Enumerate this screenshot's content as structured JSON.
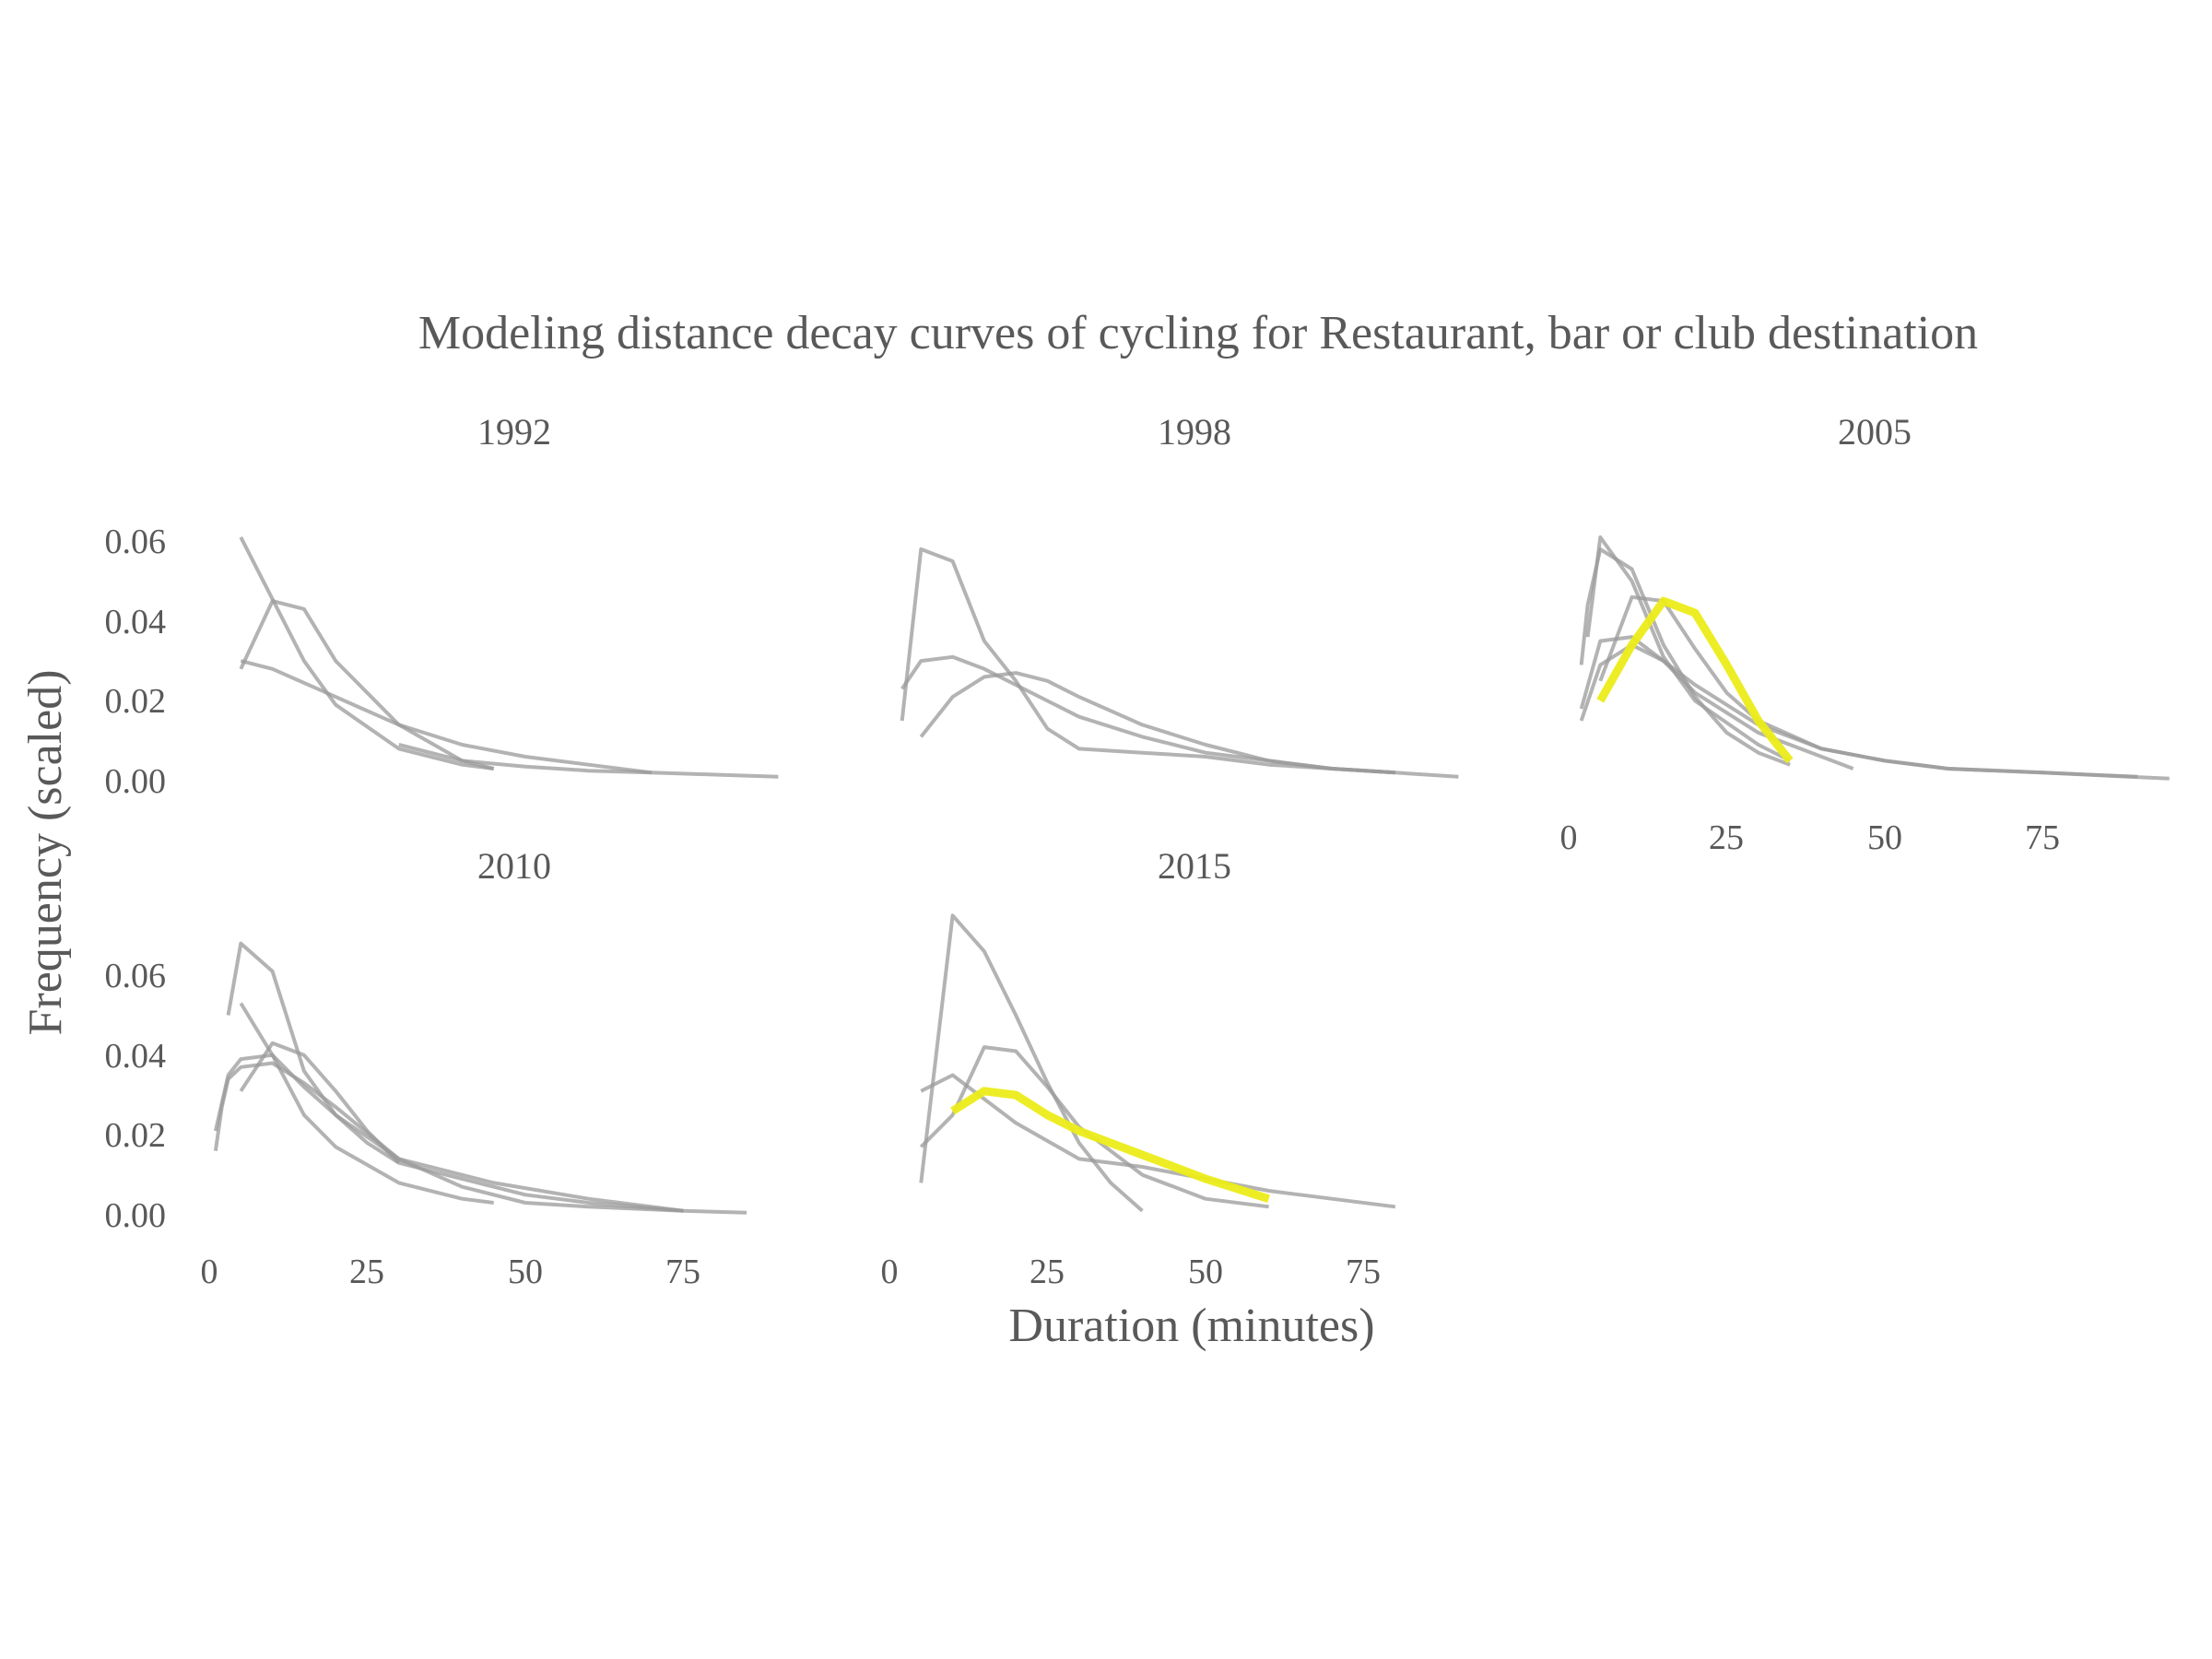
{
  "chart_data": {
    "type": "line",
    "title": "Modeling distance decay curves of cycling for Restaurant, bar or club destination",
    "xlabel": "Duration (minutes)",
    "ylabel": "Frequency (scaled)",
    "xlim": [
      0,
      95
    ],
    "ylim": [
      0,
      0.065
    ],
    "x_ticks": [
      "0",
      "25",
      "50",
      "75"
    ],
    "y_ticks": [
      "0.00",
      "0.02",
      "0.04",
      "0.06"
    ],
    "grid": false,
    "colors": {
      "background_series": "#999999",
      "highlight": "#ecec1a",
      "text": "#595959"
    },
    "panels": [
      {
        "label": "1992",
        "series": [
          {
            "highlight": false,
            "x": [
              5,
              10,
              15,
              20,
              30,
              40,
              45
            ],
            "y": [
              0.028,
              0.045,
              0.043,
              0.03,
              0.014,
              0.005,
              0.003
            ]
          },
          {
            "highlight": false,
            "x": [
              5,
              15,
              20,
              30,
              40,
              45
            ],
            "y": [
              0.061,
              0.03,
              0.019,
              0.008,
              0.004,
              0.003
            ]
          },
          {
            "highlight": false,
            "x": [
              5,
              10,
              20,
              30,
              40,
              50,
              60,
              70
            ],
            "y": [
              0.03,
              0.028,
              0.021,
              0.014,
              0.009,
              0.006,
              0.004,
              0.002
            ]
          },
          {
            "highlight": false,
            "x": [
              30,
              40,
              50,
              60,
              70,
              80,
              90
            ],
            "y": [
              0.009,
              0.005,
              0.0035,
              0.0025,
              0.002,
              0.0015,
              0.001
            ]
          }
        ]
      },
      {
        "label": "1998",
        "series": [
          {
            "highlight": false,
            "x": [
              2,
              5,
              10,
              15,
              20,
              25,
              30,
              40,
              50,
              60,
              70,
              80
            ],
            "y": [
              0.015,
              0.058,
              0.055,
              0.035,
              0.025,
              0.013,
              0.008,
              0.007,
              0.006,
              0.004,
              0.003,
              0.002
            ]
          },
          {
            "highlight": false,
            "x": [
              2,
              5,
              10,
              15,
              20,
              30,
              40,
              50,
              60,
              70,
              80
            ],
            "y": [
              0.023,
              0.03,
              0.031,
              0.028,
              0.024,
              0.016,
              0.011,
              0.007,
              0.005,
              0.003,
              0.002
            ]
          },
          {
            "highlight": false,
            "x": [
              5,
              10,
              15,
              20,
              25,
              30,
              40,
              50,
              60,
              70,
              80,
              90
            ],
            "y": [
              0.011,
              0.021,
              0.026,
              0.027,
              0.025,
              0.021,
              0.014,
              0.009,
              0.005,
              0.003,
              0.002,
              0.001
            ]
          }
        ]
      },
      {
        "label": "2005",
        "series": [
          {
            "highlight": false,
            "x": [
              2,
              3,
              5,
              10,
              15,
              20,
              25,
              30,
              35
            ],
            "y": [
              0.029,
              0.044,
              0.058,
              0.053,
              0.034,
              0.021,
              0.012,
              0.007,
              0.004
            ]
          },
          {
            "highlight": false,
            "x": [
              3,
              5,
              10,
              15,
              20,
              30,
              35
            ],
            "y": [
              0.036,
              0.061,
              0.05,
              0.031,
              0.02,
              0.009,
              0.005
            ]
          },
          {
            "highlight": false,
            "x": [
              2,
              5,
              10,
              15,
              20,
              30,
              45
            ],
            "y": [
              0.018,
              0.035,
              0.036,
              0.03,
              0.022,
              0.012,
              0.003
            ]
          },
          {
            "highlight": false,
            "x": [
              2,
              5,
              10,
              15,
              20,
              30,
              40,
              50,
              60,
              75,
              90
            ],
            "y": [
              0.015,
              0.029,
              0.034,
              0.03,
              0.024,
              0.014,
              0.008,
              0.005,
              0.003,
              0.002,
              0.001
            ]
          },
          {
            "highlight": false,
            "x": [
              5,
              10,
              15,
              20,
              25,
              30,
              40,
              50,
              60,
              75,
              95
            ],
            "y": [
              0.025,
              0.046,
              0.045,
              0.033,
              0.022,
              0.015,
              0.008,
              0.005,
              0.003,
              0.002,
              0.0005
            ]
          },
          {
            "highlight": true,
            "x": [
              5,
              10,
              15,
              20,
              25,
              30,
              35
            ],
            "y": [
              0.02,
              0.034,
              0.045,
              0.042,
              0.029,
              0.015,
              0.005
            ]
          }
        ]
      },
      {
        "label": "2010",
        "series": [
          {
            "highlight": false,
            "x": [
              3,
              5,
              10,
              15,
              20,
              25,
              30,
              40,
              50,
              60,
              75
            ],
            "y": [
              0.05,
              0.068,
              0.061,
              0.036,
              0.025,
              0.018,
              0.013,
              0.009,
              0.005,
              0.003,
              0.001
            ]
          },
          {
            "highlight": false,
            "x": [
              5,
              10,
              15,
              20,
              30,
              40,
              45
            ],
            "y": [
              0.053,
              0.04,
              0.025,
              0.017,
              0.008,
              0.004,
              0.003
            ]
          },
          {
            "highlight": false,
            "x": [
              1,
              2,
              3,
              5,
              10,
              15,
              20,
              30,
              40,
              50,
              60,
              75
            ],
            "y": [
              0.016,
              0.027,
              0.034,
              0.037,
              0.038,
              0.033,
              0.027,
              0.014,
              0.007,
              0.003,
              0.002,
              0.001
            ]
          },
          {
            "highlight": false,
            "x": [
              1,
              3,
              5,
              10,
              15,
              20,
              30,
              45,
              60,
              75,
              85
            ],
            "y": [
              0.021,
              0.035,
              0.039,
              0.04,
              0.032,
              0.025,
              0.014,
              0.008,
              0.004,
              0.001,
              0.0005
            ]
          },
          {
            "highlight": false,
            "x": [
              5,
              10,
              15,
              20,
              25,
              30
            ],
            "y": [
              0.031,
              0.043,
              0.04,
              0.031,
              0.021,
              0.013
            ]
          }
        ]
      },
      {
        "label": "2015",
        "series": [
          {
            "highlight": false,
            "x": [
              5,
              10,
              15,
              20,
              25,
              30,
              35,
              40
            ],
            "y": [
              0.008,
              0.075,
              0.066,
              0.05,
              0.033,
              0.018,
              0.008,
              0.001
            ]
          },
          {
            "highlight": false,
            "x": [
              5,
              10,
              15,
              20,
              25,
              30,
              40,
              50,
              60
            ],
            "y": [
              0.017,
              0.025,
              0.042,
              0.041,
              0.032,
              0.022,
              0.01,
              0.004,
              0.002
            ]
          },
          {
            "highlight": false,
            "x": [
              5,
              10,
              20,
              30,
              40,
              50,
              60,
              70,
              80
            ],
            "y": [
              0.031,
              0.035,
              0.023,
              0.014,
              0.012,
              0.009,
              0.006,
              0.004,
              0.002
            ]
          },
          {
            "highlight": true,
            "x": [
              10,
              15,
              20,
              25,
              30,
              35,
              40,
              50,
              60
            ],
            "y": [
              0.026,
              0.031,
              0.03,
              0.025,
              0.021,
              0.018,
              0.015,
              0.009,
              0.004
            ]
          }
        ]
      }
    ]
  }
}
